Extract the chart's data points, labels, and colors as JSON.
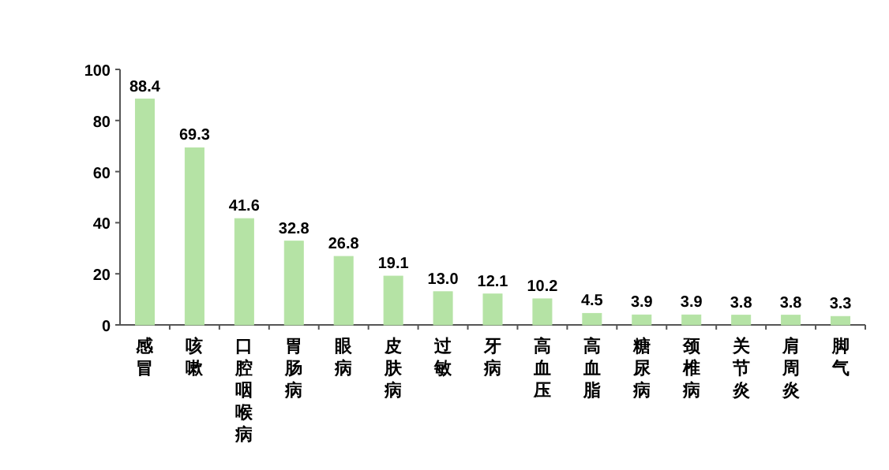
{
  "chart_data": {
    "type": "bar",
    "categories": [
      "感冒",
      "咳嗽",
      "口腔咽喉病",
      "胃肠病",
      "眼病",
      "皮肤病",
      "过敏",
      "牙病",
      "高血压",
      "高血脂",
      "糖尿病",
      "颈椎病",
      "关节炎",
      "肩周炎",
      "脚气"
    ],
    "values": [
      88.4,
      69.3,
      41.6,
      32.8,
      26.8,
      19.1,
      13.0,
      12.1,
      10.2,
      4.5,
      3.9,
      3.9,
      3.8,
      3.8,
      3.3
    ],
    "value_labels": [
      "88.4",
      "69.3",
      "41.6",
      "32.8",
      "26.8",
      "19.1",
      "13.0",
      "12.1",
      "10.2",
      "4.5",
      "3.9",
      "3.9",
      "3.8",
      "3.8",
      "3.3"
    ],
    "color": "#b5e3a5",
    "ylim": [
      0,
      100
    ],
    "yticks": [
      0,
      20,
      40,
      60,
      80,
      100
    ],
    "grid": false
  }
}
